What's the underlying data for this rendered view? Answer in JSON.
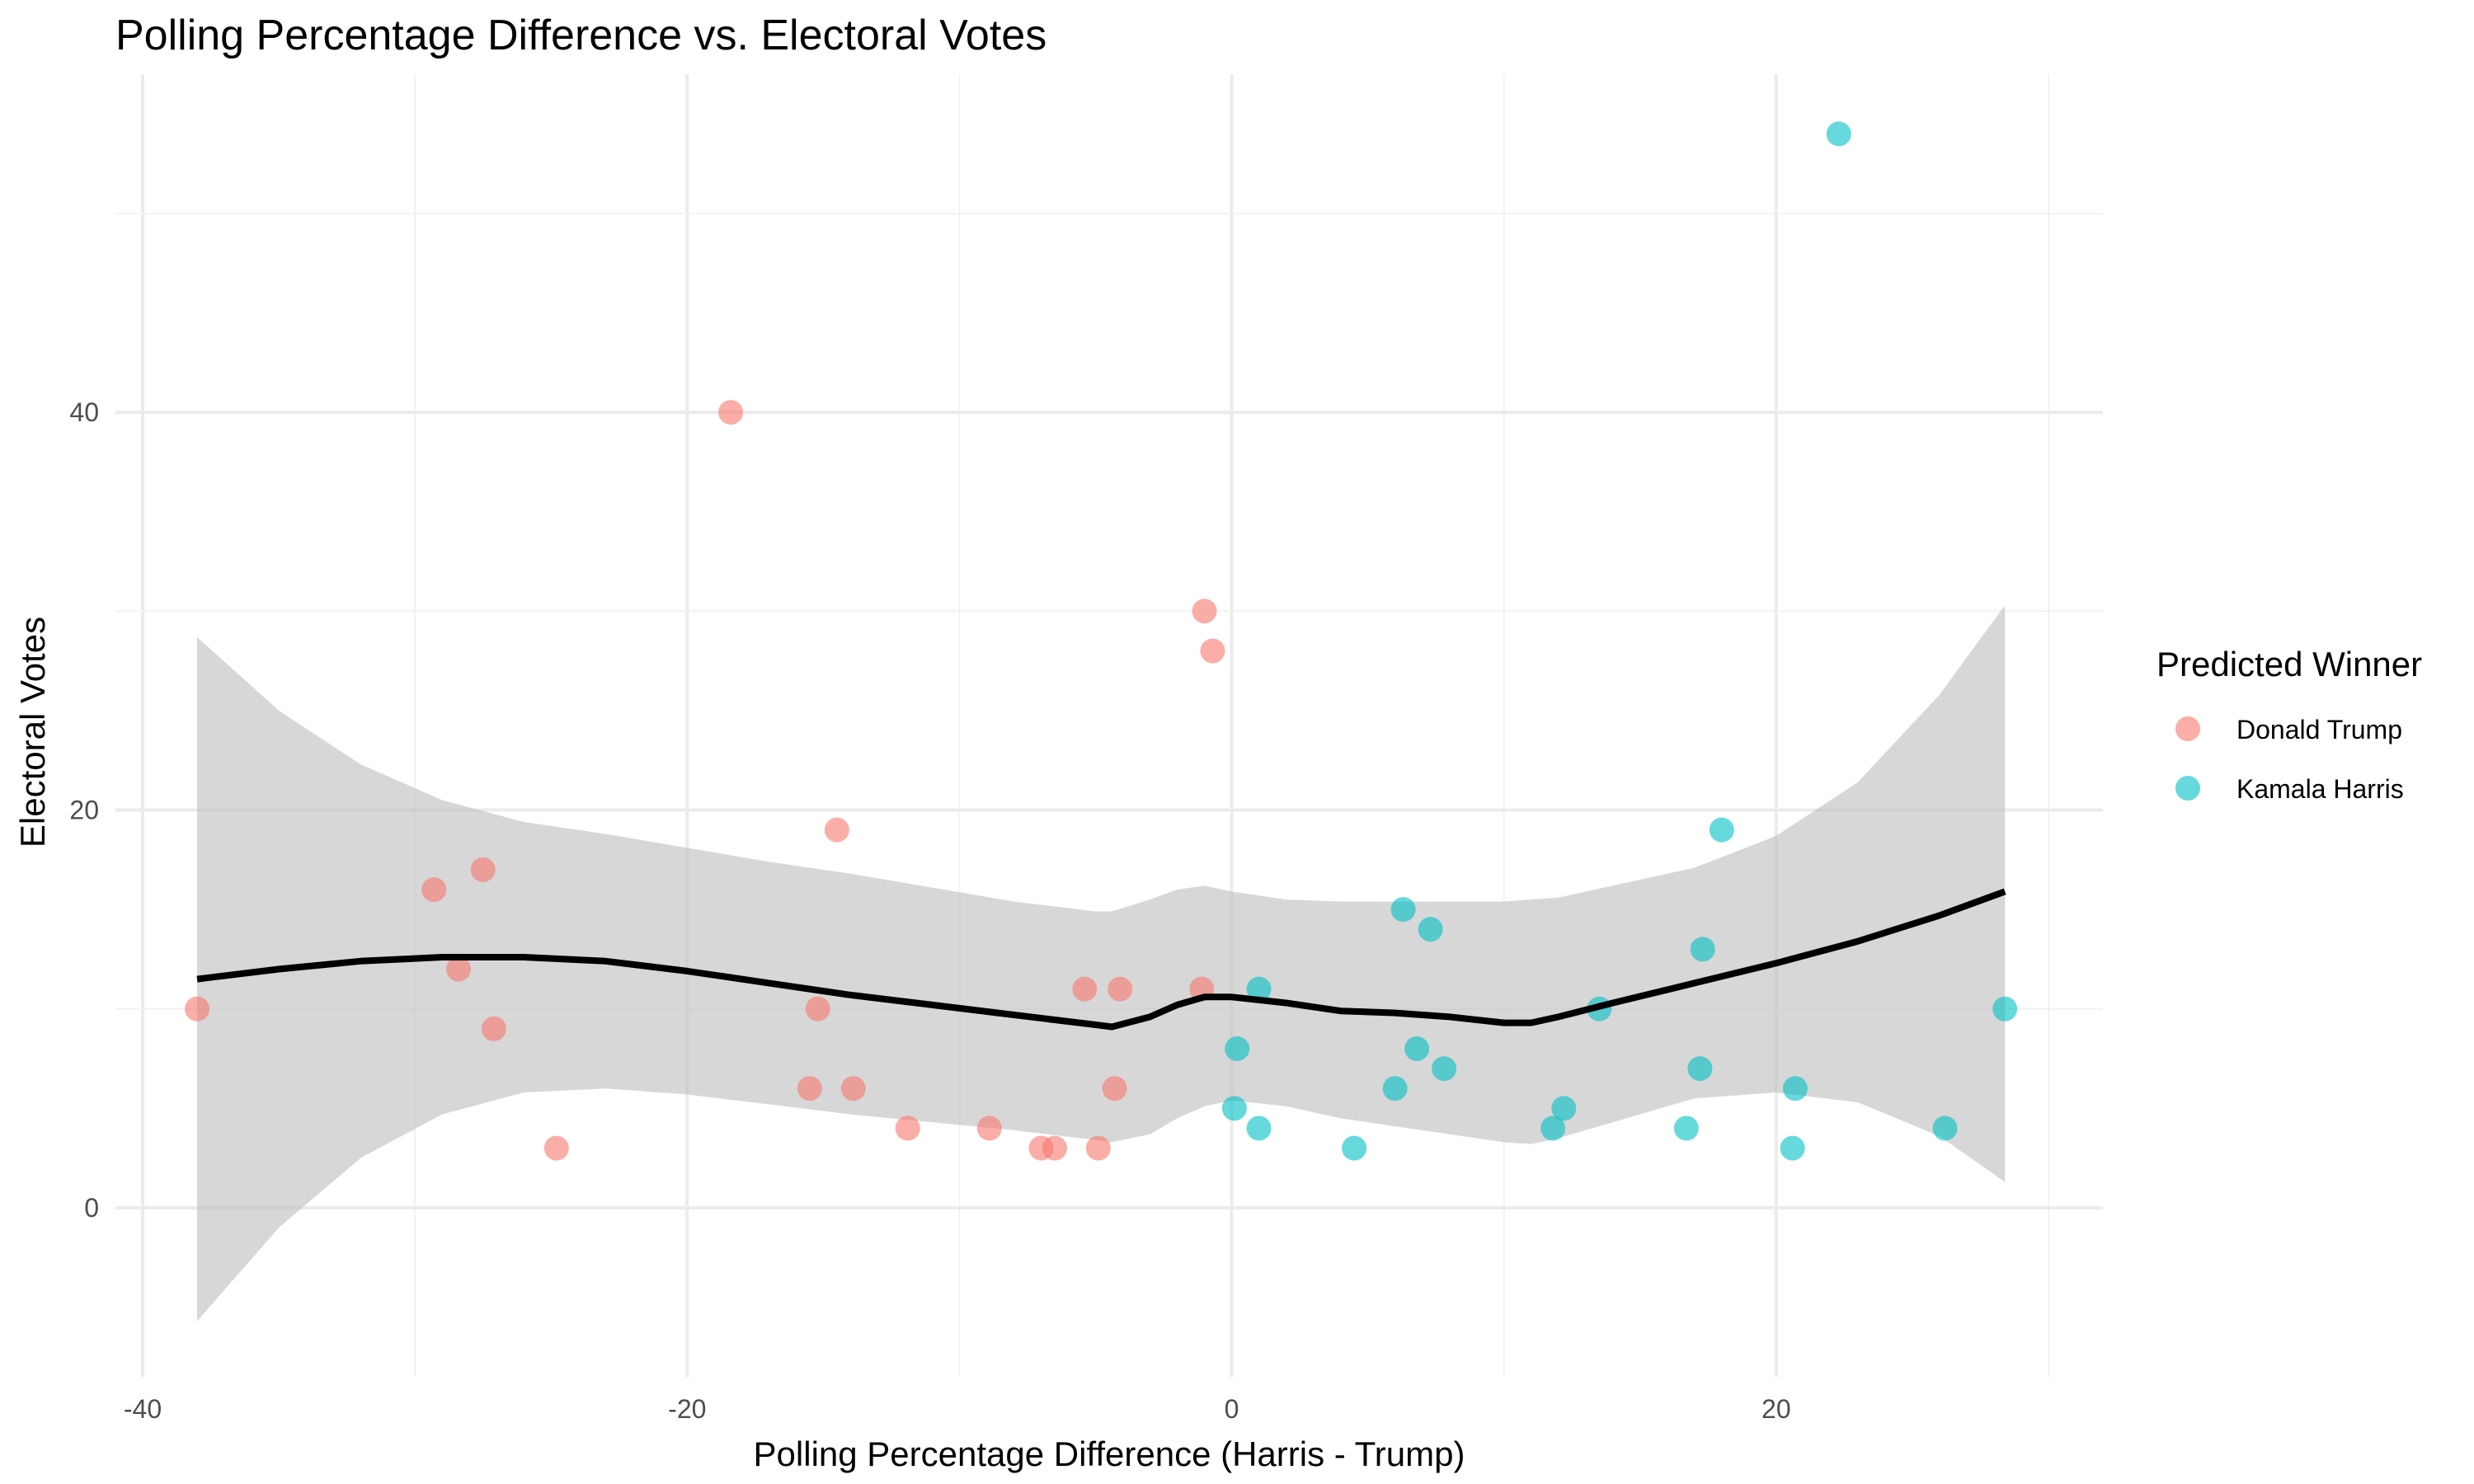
{
  "chart_data": {
    "type": "scatter",
    "title": "Polling Percentage Difference vs. Electoral Votes",
    "xlabel": "Polling Percentage Difference (Harris - Trump)",
    "ylabel": "Electoral Votes",
    "xlim": [
      -41,
      32
    ],
    "ylim": [
      -8.5,
      57
    ],
    "x_ticks": [
      -40,
      -20,
      0,
      20
    ],
    "y_ticks": [
      0,
      20,
      40
    ],
    "grid": true,
    "legend": {
      "title": "Predicted Winner",
      "position": "right"
    },
    "series": [
      {
        "name": "Donald Trump",
        "color": "#F8766D",
        "points": [
          {
            "x": -38.0,
            "y": 10
          },
          {
            "x": -29.3,
            "y": 16
          },
          {
            "x": -27.5,
            "y": 17
          },
          {
            "x": -28.4,
            "y": 12
          },
          {
            "x": -27.1,
            "y": 9
          },
          {
            "x": -24.8,
            "y": 3
          },
          {
            "x": -18.4,
            "y": 40
          },
          {
            "x": -14.5,
            "y": 19
          },
          {
            "x": -15.2,
            "y": 10
          },
          {
            "x": -15.5,
            "y": 6
          },
          {
            "x": -13.9,
            "y": 6
          },
          {
            "x": -11.9,
            "y": 4
          },
          {
            "x": -8.9,
            "y": 4
          },
          {
            "x": -7.0,
            "y": 3
          },
          {
            "x": -6.5,
            "y": 3
          },
          {
            "x": -4.9,
            "y": 3
          },
          {
            "x": -5.4,
            "y": 11
          },
          {
            "x": -4.1,
            "y": 11
          },
          {
            "x": -4.3,
            "y": 6
          },
          {
            "x": -1.0,
            "y": 30
          },
          {
            "x": -0.7,
            "y": 28
          },
          {
            "x": -1.1,
            "y": 11
          }
        ]
      },
      {
        "name": "Kamala Harris",
        "color": "#00BFC4",
        "points": [
          {
            "x": 22.3,
            "y": 54
          },
          {
            "x": 18.0,
            "y": 19
          },
          {
            "x": 6.3,
            "y": 15
          },
          {
            "x": 7.3,
            "y": 14
          },
          {
            "x": 17.3,
            "y": 13
          },
          {
            "x": 1.0,
            "y": 11
          },
          {
            "x": 13.5,
            "y": 10
          },
          {
            "x": 28.4,
            "y": 10
          },
          {
            "x": 0.2,
            "y": 8
          },
          {
            "x": 6.8,
            "y": 8
          },
          {
            "x": 7.8,
            "y": 7
          },
          {
            "x": 17.2,
            "y": 7
          },
          {
            "x": 6.0,
            "y": 6
          },
          {
            "x": 20.7,
            "y": 6
          },
          {
            "x": 0.1,
            "y": 5
          },
          {
            "x": 12.2,
            "y": 5
          },
          {
            "x": 1.0,
            "y": 4
          },
          {
            "x": 11.8,
            "y": 4
          },
          {
            "x": 16.7,
            "y": 4
          },
          {
            "x": 26.2,
            "y": 4
          },
          {
            "x": 4.5,
            "y": 3
          },
          {
            "x": 20.6,
            "y": 3
          }
        ]
      }
    ],
    "smooth": {
      "method": "loess",
      "color": "#000000",
      "ribbon_color": "#bebebe",
      "x": [
        -38,
        -35,
        -32,
        -29,
        -26,
        -23,
        -20,
        -17,
        -14,
        -11,
        -8,
        -5,
        -4.4,
        -3,
        -2,
        -1,
        0,
        2,
        4,
        6,
        8,
        10,
        11,
        12,
        14,
        17,
        20,
        23,
        26,
        28.4
      ],
      "y": [
        11.5,
        12.0,
        12.4,
        12.6,
        12.6,
        12.4,
        11.9,
        11.3,
        10.7,
        10.2,
        9.7,
        9.2,
        9.1,
        9.6,
        10.2,
        10.6,
        10.6,
        10.3,
        9.9,
        9.8,
        9.6,
        9.3,
        9.3,
        9.6,
        10.3,
        11.3,
        12.3,
        13.4,
        14.7,
        15.9
      ],
      "lower": [
        -5.7,
        -1.0,
        2.5,
        4.7,
        5.8,
        6.0,
        5.7,
        5.2,
        4.7,
        4.3,
        3.9,
        3.4,
        3.3,
        3.7,
        4.5,
        5.1,
        5.4,
        5.1,
        4.5,
        4.1,
        3.7,
        3.3,
        3.2,
        3.5,
        4.3,
        5.5,
        5.8,
        5.3,
        3.6,
        1.3
      ],
      "upper": [
        28.7,
        25.0,
        22.3,
        20.5,
        19.4,
        18.8,
        18.1,
        17.4,
        16.8,
        16.1,
        15.4,
        14.9,
        14.9,
        15.5,
        16.0,
        16.2,
        15.9,
        15.5,
        15.4,
        15.4,
        15.4,
        15.4,
        15.5,
        15.6,
        16.2,
        17.1,
        18.7,
        21.4,
        25.8,
        30.3
      ]
    }
  }
}
